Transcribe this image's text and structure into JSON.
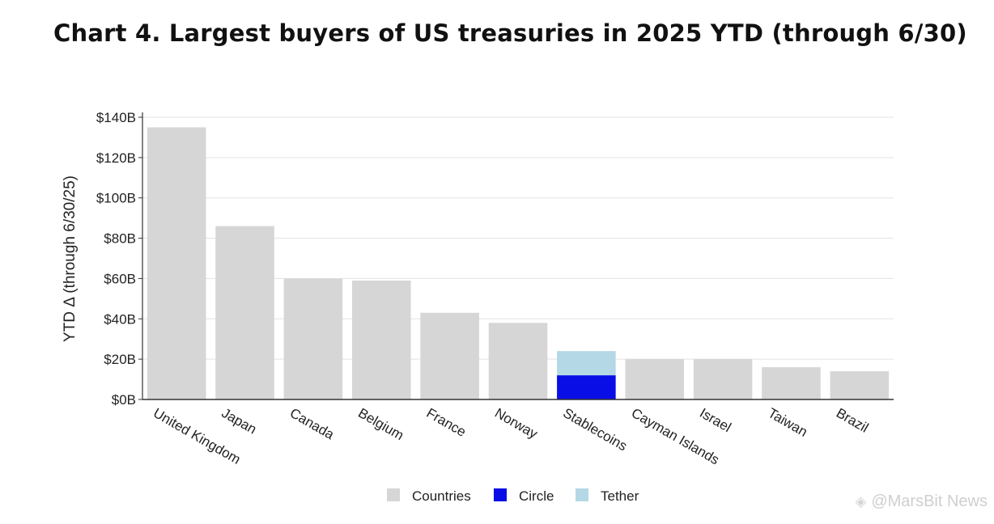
{
  "chart_data": {
    "type": "bar",
    "title": "Chart 4. Largest buyers of US treasuries in 2025 YTD (through 6/30)",
    "ylabel": "YTD Δ (through 6/30/25)",
    "xlabel": "",
    "ylim": [
      0,
      140
    ],
    "y_ticks": [
      0,
      20,
      40,
      60,
      80,
      100,
      120,
      140
    ],
    "y_tick_labels": [
      "$0B",
      "$20B",
      "$40B",
      "$60B",
      "$80B",
      "$100B",
      "$120B",
      "$140B"
    ],
    "grid": true,
    "legend_position": "bottom",
    "categories": [
      "United Kingdom",
      "Japan",
      "Canada",
      "Belgium",
      "France",
      "Norway",
      "Stablecoins",
      "Cayman Islands",
      "Israel",
      "Taiwan",
      "Brazil"
    ],
    "series": [
      {
        "name": "Countries",
        "color": "#d6d6d6",
        "values": [
          135,
          86,
          60,
          59,
          43,
          38,
          0,
          20,
          20,
          16,
          14
        ]
      },
      {
        "name": "Circle",
        "color": "#0a0ee6",
        "values": [
          0,
          0,
          0,
          0,
          0,
          0,
          12,
          0,
          0,
          0,
          0
        ]
      },
      {
        "name": "Tether",
        "color": "#b4d8e6",
        "values": [
          0,
          0,
          0,
          0,
          0,
          0,
          12,
          0,
          0,
          0,
          0
        ]
      }
    ],
    "stacked": true
  },
  "watermark": {
    "text": "@MarsBit News",
    "icon": "binance-logo-icon"
  }
}
